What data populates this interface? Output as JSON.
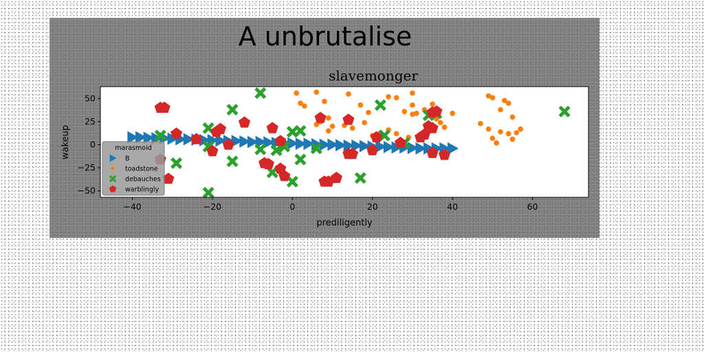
{
  "chart_data": {
    "type": "scatter",
    "suptitle": "A unbrutalise",
    "title": "slavemonger",
    "xlabel": "prediligently",
    "ylabel": "wakeup",
    "xlim": [
      -48,
      74
    ],
    "ylim": [
      -57,
      63
    ],
    "xticks": [
      -40,
      -20,
      0,
      20,
      40,
      60
    ],
    "yticks": [
      -50,
      -25,
      0,
      25,
      50
    ],
    "grid": false,
    "legend": {
      "title": "marasmoid",
      "placement": "lower-left"
    },
    "series": [
      {
        "name": "B",
        "color": "#1f77b4",
        "marker": "triangle-right",
        "points": [
          [
            -40,
            8
          ],
          [
            -38,
            8
          ],
          [
            -36,
            7.5
          ],
          [
            -34,
            7
          ],
          [
            -32,
            7
          ],
          [
            -30,
            6.5
          ],
          [
            -28,
            6
          ],
          [
            -26,
            6
          ],
          [
            -24,
            5.5
          ],
          [
            -22,
            5
          ],
          [
            -20,
            5
          ],
          [
            -18,
            4.5
          ],
          [
            -16,
            4
          ],
          [
            -14,
            4
          ],
          [
            -12,
            3.5
          ],
          [
            -10,
            3
          ],
          [
            -8,
            3
          ],
          [
            -6,
            2.5
          ],
          [
            -4,
            2
          ],
          [
            -2,
            2
          ],
          [
            0,
            1.5
          ],
          [
            2,
            1
          ],
          [
            4,
            1
          ],
          [
            6,
            0.5
          ],
          [
            8,
            0
          ],
          [
            10,
            0
          ],
          [
            12,
            -0.5
          ],
          [
            14,
            -1
          ],
          [
            16,
            -1
          ],
          [
            18,
            -1.5
          ],
          [
            20,
            -2
          ],
          [
            22,
            -2
          ],
          [
            24,
            -2.5
          ],
          [
            26,
            -3
          ],
          [
            28,
            -3
          ],
          [
            30,
            -3.5
          ],
          [
            32,
            -4
          ],
          [
            34,
            -4
          ],
          [
            36,
            -4
          ],
          [
            38,
            -4
          ],
          [
            40,
            -4
          ]
        ]
      },
      {
        "name": "toadstone",
        "color": "#ff7f0e",
        "marker": "circle",
        "points": [
          [
            1,
            56
          ],
          [
            6,
            57
          ],
          [
            14,
            55
          ],
          [
            30,
            56
          ],
          [
            2,
            45
          ],
          [
            3,
            42
          ],
          [
            8,
            47
          ],
          [
            17,
            43
          ],
          [
            19,
            35
          ],
          [
            24,
            52
          ],
          [
            26,
            51
          ],
          [
            28,
            36
          ],
          [
            30,
            33
          ],
          [
            30,
            43
          ],
          [
            31,
            34
          ],
          [
            33,
            38
          ],
          [
            35,
            44
          ],
          [
            36,
            28
          ],
          [
            37,
            24
          ],
          [
            38,
            19
          ],
          [
            40,
            34
          ],
          [
            6,
            22
          ],
          [
            7,
            25
          ],
          [
            9,
            29
          ],
          [
            10,
            20
          ],
          [
            9,
            15
          ],
          [
            13,
            21
          ],
          [
            15,
            18
          ],
          [
            18,
            24
          ],
          [
            24,
            16
          ],
          [
            22,
            13
          ],
          [
            20,
            10
          ],
          [
            26,
            12
          ],
          [
            29,
            8
          ],
          [
            47,
            23
          ],
          [
            49,
            53
          ],
          [
            50,
            51
          ],
          [
            53,
            48
          ],
          [
            54,
            45
          ],
          [
            52,
            38
          ],
          [
            55,
            30
          ],
          [
            49,
            17
          ],
          [
            52,
            14
          ],
          [
            54,
            12
          ],
          [
            56,
            13
          ],
          [
            57,
            17
          ],
          [
            50,
            7
          ],
          [
            51,
            2
          ],
          [
            55,
            6
          ]
        ]
      },
      {
        "name": "debauches",
        "color": "#2ca02c",
        "marker": "x",
        "points": [
          [
            -8,
            56
          ],
          [
            -15,
            38
          ],
          [
            -21,
            18
          ],
          [
            -33,
            10
          ],
          [
            -21,
            -2
          ],
          [
            -29,
            -20
          ],
          [
            -15,
            -18
          ],
          [
            -8,
            -5
          ],
          [
            -4,
            -6
          ],
          [
            -2,
            -2
          ],
          [
            0,
            14
          ],
          [
            2,
            15
          ],
          [
            0,
            -40
          ],
          [
            2,
            -16
          ],
          [
            6,
            -4
          ],
          [
            17,
            -36
          ],
          [
            22,
            43
          ],
          [
            23,
            10
          ],
          [
            28,
            2
          ],
          [
            34,
            32
          ],
          [
            36,
            34
          ],
          [
            68,
            36
          ],
          [
            -21,
            -52
          ],
          [
            -5,
            -30
          ]
        ]
      },
      {
        "name": "warblingly",
        "color": "#d62728",
        "marker": "pentagon",
        "points": [
          [
            -33,
            40
          ],
          [
            -32,
            40
          ],
          [
            -24,
            6
          ],
          [
            -19,
            14
          ],
          [
            -18,
            17
          ],
          [
            -12,
            24
          ],
          [
            -5,
            18
          ],
          [
            -3,
            4
          ],
          [
            -16,
            0
          ],
          [
            -20,
            -7
          ],
          [
            -29,
            12
          ],
          [
            -33,
            -16
          ],
          [
            -31,
            -37
          ],
          [
            -7,
            -20
          ],
          [
            -6,
            -21
          ],
          [
            -3,
            -26
          ],
          [
            -2,
            -34
          ],
          [
            7,
            29
          ],
          [
            14,
            27
          ],
          [
            8,
            -40
          ],
          [
            9,
            -40
          ],
          [
            11,
            -36
          ],
          [
            14,
            -10
          ],
          [
            15,
            -10
          ],
          [
            20,
            -6
          ],
          [
            21,
            8
          ],
          [
            27,
            2
          ],
          [
            32,
            8
          ],
          [
            33,
            11
          ],
          [
            34,
            20
          ],
          [
            35,
            18
          ],
          [
            35,
            35
          ],
          [
            36,
            36
          ],
          [
            35,
            -9
          ],
          [
            38,
            -11
          ]
        ]
      }
    ]
  }
}
